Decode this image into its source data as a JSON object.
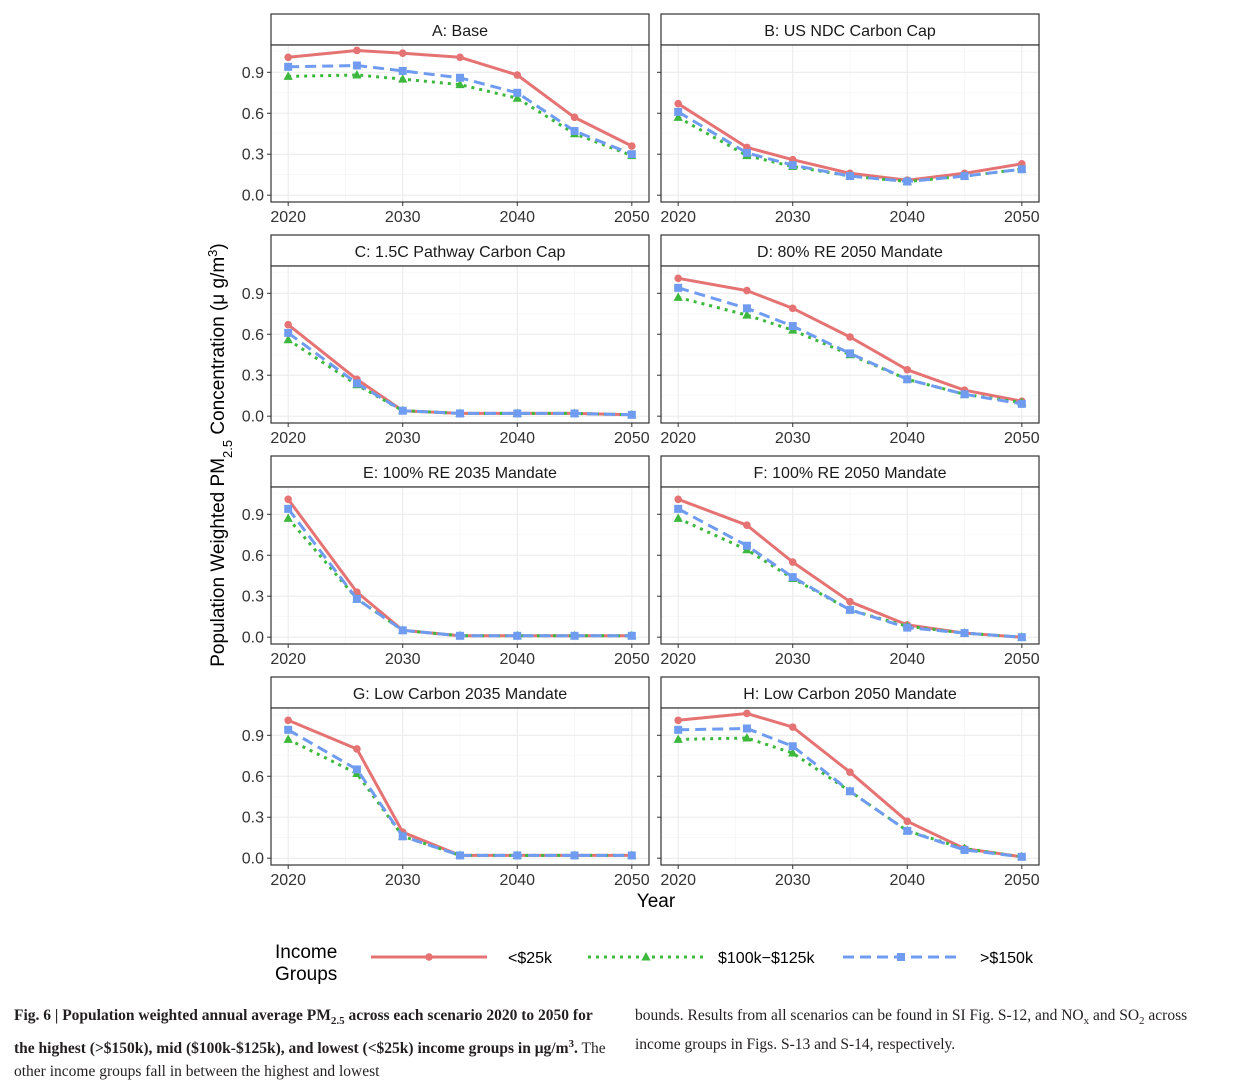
{
  "chart_data": {
    "type": "line",
    "ylabel_main": "Population Weighted PM",
    "ylabel_sub": "2.5",
    "ylabel_rest": " Concentration (μ g/m",
    "ylabel_sup": "3",
    "ylabel_end": ")",
    "xlabel": "Year",
    "x": [
      2020,
      2026,
      2030,
      2035,
      2040,
      2045,
      2050
    ],
    "xticks": [
      2020,
      2030,
      2040,
      2050
    ],
    "yticks": [
      0.0,
      0.3,
      0.6,
      0.9
    ],
    "ytick_labels": [
      "0.0",
      "0.3",
      "0.6",
      "0.9"
    ],
    "ylim": [
      -0.05,
      1.1
    ],
    "xlim": [
      2018.5,
      2051.5
    ],
    "grid": true,
    "legend": {
      "title_line1": "Income",
      "title_line2": "Groups",
      "placement": "bottom",
      "entries": [
        {
          "name": "<$25k",
          "color": "#e57373",
          "dash": "solid",
          "marker": "circle"
        },
        {
          "name": "$100k−$125k",
          "color": "#3cb83c",
          "dash": "dotted",
          "marker": "triangle"
        },
        {
          "name": ">$150k",
          "color": "#6f9cf0",
          "dash": "dashed",
          "marker": "square"
        }
      ]
    },
    "panels": [
      {
        "title": "A: Base",
        "series": [
          {
            "name": "<$25k",
            "values": [
              1.01,
              1.06,
              1.04,
              1.01,
              0.88,
              0.57,
              0.36
            ]
          },
          {
            "name": "$100k−$125k",
            "values": [
              0.87,
              0.88,
              0.85,
              0.81,
              0.71,
              0.45,
              0.29
            ]
          },
          {
            "name": ">$150k",
            "values": [
              0.94,
              0.95,
              0.91,
              0.86,
              0.75,
              0.47,
              0.3
            ]
          }
        ]
      },
      {
        "title": "B: US NDC Carbon Cap",
        "series": [
          {
            "name": "<$25k",
            "values": [
              0.67,
              0.35,
              0.26,
              0.16,
              0.11,
              0.16,
              0.23
            ]
          },
          {
            "name": "$100k−$125k",
            "values": [
              0.57,
              0.29,
              0.21,
              0.14,
              0.1,
              0.14,
              0.19
            ]
          },
          {
            "name": ">$150k",
            "values": [
              0.61,
              0.31,
              0.22,
              0.14,
              0.1,
              0.14,
              0.19
            ]
          }
        ]
      },
      {
        "title": "C: 1.5C Pathway Carbon Cap",
        "series": [
          {
            "name": "<$25k",
            "values": [
              0.67,
              0.27,
              0.04,
              0.02,
              0.02,
              0.02,
              0.01
            ]
          },
          {
            "name": "$100k−$125k",
            "values": [
              0.56,
              0.23,
              0.04,
              0.02,
              0.02,
              0.02,
              0.01
            ]
          },
          {
            "name": ">$150k",
            "values": [
              0.61,
              0.24,
              0.04,
              0.02,
              0.02,
              0.02,
              0.01
            ]
          }
        ]
      },
      {
        "title": "D: 80% RE 2050 Mandate",
        "series": [
          {
            "name": "<$25k",
            "values": [
              1.01,
              0.92,
              0.79,
              0.58,
              0.34,
              0.19,
              0.11
            ]
          },
          {
            "name": "$100k−$125k",
            "values": [
              0.87,
              0.74,
              0.63,
              0.45,
              0.27,
              0.16,
              0.1
            ]
          },
          {
            "name": ">$150k",
            "values": [
              0.94,
              0.79,
              0.66,
              0.46,
              0.27,
              0.16,
              0.09
            ]
          }
        ]
      },
      {
        "title": "E: 100% RE 2035 Mandate",
        "series": [
          {
            "name": "<$25k",
            "values": [
              1.01,
              0.33,
              0.05,
              0.01,
              0.01,
              0.01,
              0.01
            ]
          },
          {
            "name": "$100k−$125k",
            "values": [
              0.87,
              0.28,
              0.05,
              0.01,
              0.01,
              0.01,
              0.01
            ]
          },
          {
            "name": ">$150k",
            "values": [
              0.94,
              0.28,
              0.05,
              0.01,
              0.01,
              0.01,
              0.01
            ]
          }
        ]
      },
      {
        "title": "F: 100% RE 2050 Mandate",
        "series": [
          {
            "name": "<$25k",
            "values": [
              1.01,
              0.82,
              0.55,
              0.26,
              0.09,
              0.03,
              0.0
            ]
          },
          {
            "name": "$100k−$125k",
            "values": [
              0.87,
              0.64,
              0.43,
              0.2,
              0.08,
              0.03,
              0.0
            ]
          },
          {
            "name": ">$150k",
            "values": [
              0.94,
              0.67,
              0.44,
              0.2,
              0.07,
              0.03,
              0.0
            ]
          }
        ]
      },
      {
        "title": "G: Low Carbon 2035 Mandate",
        "series": [
          {
            "name": "<$25k",
            "values": [
              1.01,
              0.8,
              0.19,
              0.02,
              0.02,
              0.02,
              0.02
            ]
          },
          {
            "name": "$100k−$125k",
            "values": [
              0.87,
              0.62,
              0.16,
              0.02,
              0.02,
              0.02,
              0.02
            ]
          },
          {
            "name": ">$150k",
            "values": [
              0.94,
              0.65,
              0.16,
              0.02,
              0.02,
              0.02,
              0.02
            ]
          }
        ]
      },
      {
        "title": "H: Low Carbon 2050 Mandate",
        "series": [
          {
            "name": "<$25k",
            "values": [
              1.01,
              1.06,
              0.96,
              0.63,
              0.27,
              0.07,
              0.01
            ]
          },
          {
            "name": "$100k−$125k",
            "values": [
              0.87,
              0.88,
              0.77,
              0.49,
              0.2,
              0.07,
              0.01
            ]
          },
          {
            "name": ">$150k",
            "values": [
              0.94,
              0.95,
              0.82,
              0.49,
              0.2,
              0.06,
              0.01
            ]
          }
        ]
      }
    ]
  },
  "caption": {
    "fig_label": "Fig. 6 | ",
    "bold_text_a": "Population weighted annual average PM",
    "bold_sub": "2.5",
    "bold_text_b": " across each scenario 2020 to 2050 for the highest (>$150k), mid ($100k-$125k), and lowest (<$25k) income groups in μg/m",
    "bold_sup": "3",
    "bold_end": ".",
    "normal_text": " The other income groups fall in between the highest and lowest",
    "col2_text_a": "bounds. Results from all scenarios can be found in SI Fig. S-12, and NO",
    "col2_sub_x": "x",
    "col2_text_b": " and SO",
    "col2_sub_2": "2",
    "col2_text_c": " across income groups in Figs. S-13 and S-14, respectively."
  }
}
